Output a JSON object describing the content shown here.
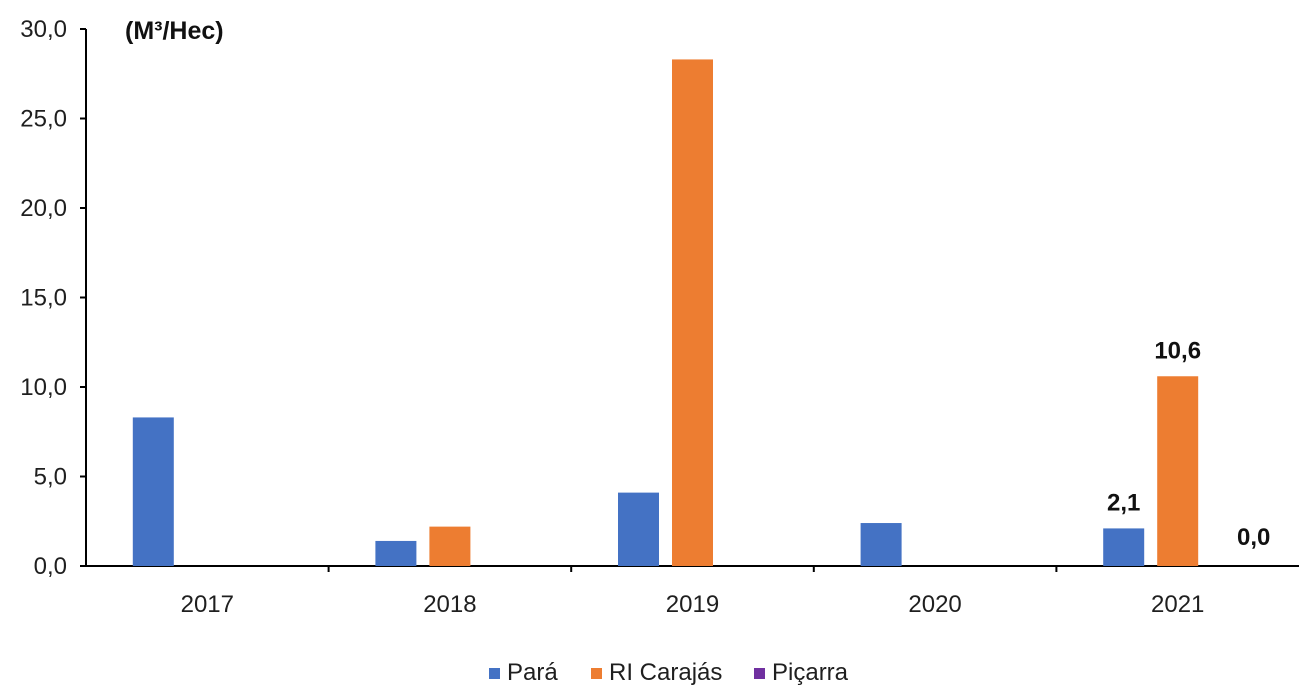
{
  "chart_data": {
    "type": "bar",
    "categories": [
      "2017",
      "2018",
      "2019",
      "2020",
      "2021"
    ],
    "y_unit": "(M³/Hec)",
    "ylim": [
      0,
      30
    ],
    "yticks": [
      "0,0",
      "5,0",
      "10,0",
      "15,0",
      "20,0",
      "25,0",
      "30,0"
    ],
    "ytick_values": [
      0,
      5,
      10,
      15,
      20,
      25,
      30
    ],
    "grid": false,
    "legend_position": "bottom",
    "series": [
      {
        "name": "Pará",
        "color": "#4472c4",
        "values": [
          8.3,
          1.4,
          4.1,
          2.4,
          2.1
        ]
      },
      {
        "name": "RI Carajás",
        "color": "#ed7d31",
        "values": [
          0.0,
          2.2,
          28.3,
          0.0,
          10.6
        ]
      },
      {
        "name": "Piçarra",
        "color": "#7030a0",
        "values": [
          0.0,
          0.0,
          0.0,
          0.0,
          0.0
        ]
      }
    ],
    "data_labels": [
      {
        "series": 0,
        "category": 4,
        "text": "2,1"
      },
      {
        "series": 1,
        "category": 4,
        "text": "10,6"
      },
      {
        "series": 2,
        "category": 4,
        "text": "0,0"
      }
    ]
  }
}
